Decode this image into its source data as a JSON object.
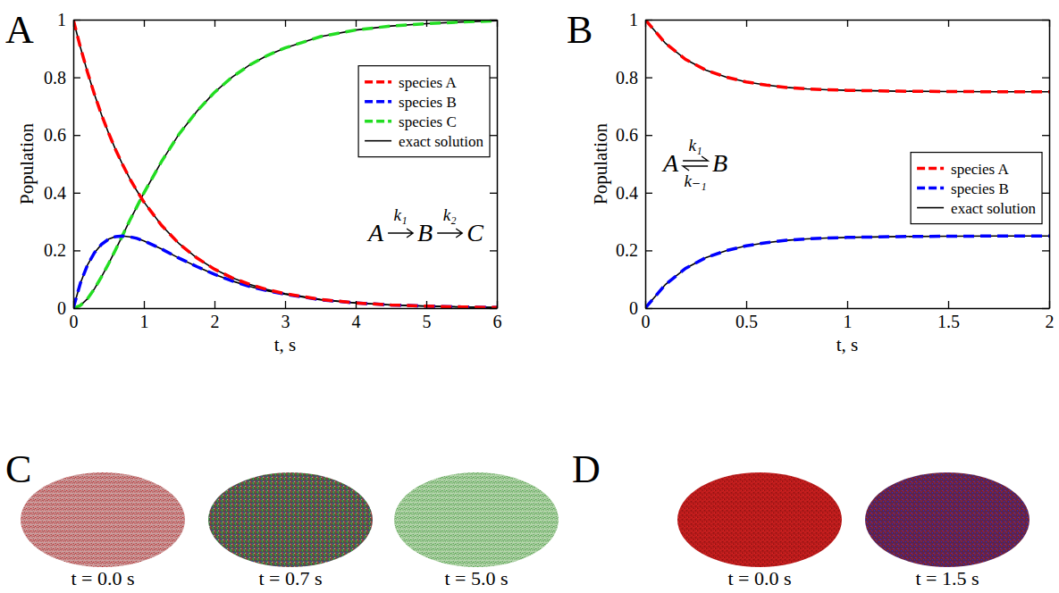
{
  "chart_data": [
    {
      "type": "line",
      "panel": "A",
      "x_label": "t, s",
      "y_label": "Population",
      "x": [
        0,
        0.1,
        0.2,
        0.3,
        0.4,
        0.5,
        0.6,
        0.7,
        0.8,
        0.9,
        1.0,
        1.25,
        1.5,
        1.75,
        2.0,
        2.25,
        2.5,
        2.75,
        3.0,
        3.5,
        4.0,
        4.5,
        5.0,
        5.5,
        6.0
      ],
      "xlim": [
        0,
        6
      ],
      "xticks": [
        0,
        1,
        2,
        3,
        4,
        5,
        6
      ],
      "ylim": [
        0,
        1
      ],
      "yticks": [
        0,
        0.2,
        0.4,
        0.6,
        0.8,
        1
      ],
      "legend": "upper right",
      "series": [
        {
          "name": "species A",
          "color": "#ff0000",
          "line_style": "dashed",
          "values": [
            1,
            0.905,
            0.819,
            0.741,
            0.67,
            0.607,
            0.549,
            0.497,
            0.449,
            0.407,
            0.368,
            0.287,
            0.223,
            0.174,
            0.135,
            0.105,
            0.082,
            0.064,
            0.05,
            0.03,
            0.018,
            0.011,
            0.007,
            0.004,
            0.002
          ]
        },
        {
          "name": "species B",
          "color": "#0000ff",
          "line_style": "dashed",
          "values": [
            0,
            0.086,
            0.149,
            0.192,
            0.221,
            0.239,
            0.248,
            0.25,
            0.247,
            0.242,
            0.233,
            0.205,
            0.173,
            0.144,
            0.117,
            0.094,
            0.075,
            0.06,
            0.048,
            0.029,
            0.018,
            0.011,
            0.007,
            0.004,
            0.002
          ]
        },
        {
          "name": "species C",
          "color": "#22dd22",
          "line_style": "dashed",
          "values": [
            0,
            0.009,
            0.032,
            0.067,
            0.109,
            0.154,
            0.203,
            0.253,
            0.304,
            0.351,
            0.399,
            0.508,
            0.604,
            0.682,
            0.748,
            0.801,
            0.843,
            0.876,
            0.902,
            0.941,
            0.964,
            0.978,
            0.986,
            0.992,
            0.996
          ]
        },
        {
          "name": "exact solution",
          "color": "#000000",
          "line_style": "solid",
          "values": [
            1,
            0.905,
            0.819,
            0.741,
            0.67,
            0.607,
            0.549,
            0.497,
            0.449,
            0.407,
            0.368,
            0.287,
            0.223,
            0.174,
            0.135,
            0.105,
            0.082,
            0.064,
            0.05,
            0.03,
            0.018,
            0.011,
            0.007,
            0.004,
            0.002
          ]
        },
        {
          "name": "exact solution",
          "color": "#000000",
          "line_style": "solid",
          "values": [
            0,
            0.086,
            0.149,
            0.192,
            0.221,
            0.239,
            0.248,
            0.25,
            0.247,
            0.242,
            0.233,
            0.205,
            0.173,
            0.144,
            0.117,
            0.094,
            0.075,
            0.06,
            0.048,
            0.029,
            0.018,
            0.011,
            0.007,
            0.004,
            0.002
          ]
        },
        {
          "name": "exact solution",
          "color": "#000000",
          "line_style": "solid",
          "values": [
            0,
            0.009,
            0.032,
            0.067,
            0.109,
            0.154,
            0.203,
            0.253,
            0.304,
            0.351,
            0.399,
            0.508,
            0.604,
            0.682,
            0.748,
            0.801,
            0.843,
            0.876,
            0.902,
            0.941,
            0.964,
            0.978,
            0.986,
            0.992,
            0.996
          ]
        }
      ],
      "annotations": [
        {
          "species": [
            "A",
            "B",
            "C"
          ],
          "rates": [
            "k₁",
            "k₂"
          ]
        }
      ]
    },
    {
      "type": "line",
      "panel": "B",
      "x_label": "t, s",
      "y_label": "Population",
      "x": [
        0,
        0.1,
        0.2,
        0.3,
        0.4,
        0.5,
        0.6,
        0.7,
        0.8,
        0.9,
        1.0,
        1.25,
        1.5,
        1.75,
        2.0
      ],
      "xlim": [
        0,
        2
      ],
      "xticks": [
        0,
        0.5,
        1,
        1.5,
        2
      ],
      "ylim": [
        0,
        1
      ],
      "yticks": [
        0,
        0.2,
        0.4,
        0.6,
        0.8,
        1
      ],
      "legend": "center right",
      "series": [
        {
          "name": "species A",
          "color": "#ff0000",
          "line_style": "dashed",
          "values": [
            1,
            0.918,
            0.862,
            0.825,
            0.801,
            0.784,
            0.773,
            0.765,
            0.76,
            0.757,
            0.755,
            0.752,
            0.751,
            0.75,
            0.75
          ]
        },
        {
          "name": "species B",
          "color": "#0000ff",
          "line_style": "dashed",
          "values": [
            0,
            0.082,
            0.138,
            0.175,
            0.199,
            0.216,
            0.227,
            0.235,
            0.24,
            0.243,
            0.245,
            0.248,
            0.249,
            0.25,
            0.25
          ]
        },
        {
          "name": "exact solution",
          "color": "#000000",
          "line_style": "solid",
          "values": [
            1,
            0.918,
            0.862,
            0.825,
            0.801,
            0.784,
            0.773,
            0.765,
            0.76,
            0.757,
            0.755,
            0.752,
            0.751,
            0.75,
            0.75
          ]
        },
        {
          "name": "exact solution",
          "color": "#000000",
          "line_style": "solid",
          "values": [
            0,
            0.082,
            0.138,
            0.175,
            0.199,
            0.216,
            0.227,
            0.235,
            0.24,
            0.243,
            0.245,
            0.248,
            0.249,
            0.25,
            0.25
          ]
        }
      ],
      "annotations": [
        {
          "species": [
            "A",
            "B"
          ],
          "rates": [
            "k₁"
          ],
          "reverse_rates": [
            "k₋₁"
          ]
        }
      ]
    }
  ],
  "snapshots": [
    {
      "panel": "C",
      "captions": [
        "t = 0.0 s",
        "t = 0.7 s",
        "t = 5.0 s"
      ]
    },
    {
      "panel": "D",
      "captions": [
        "t = 0.0 s",
        "t = 1.5 s"
      ]
    }
  ]
}
